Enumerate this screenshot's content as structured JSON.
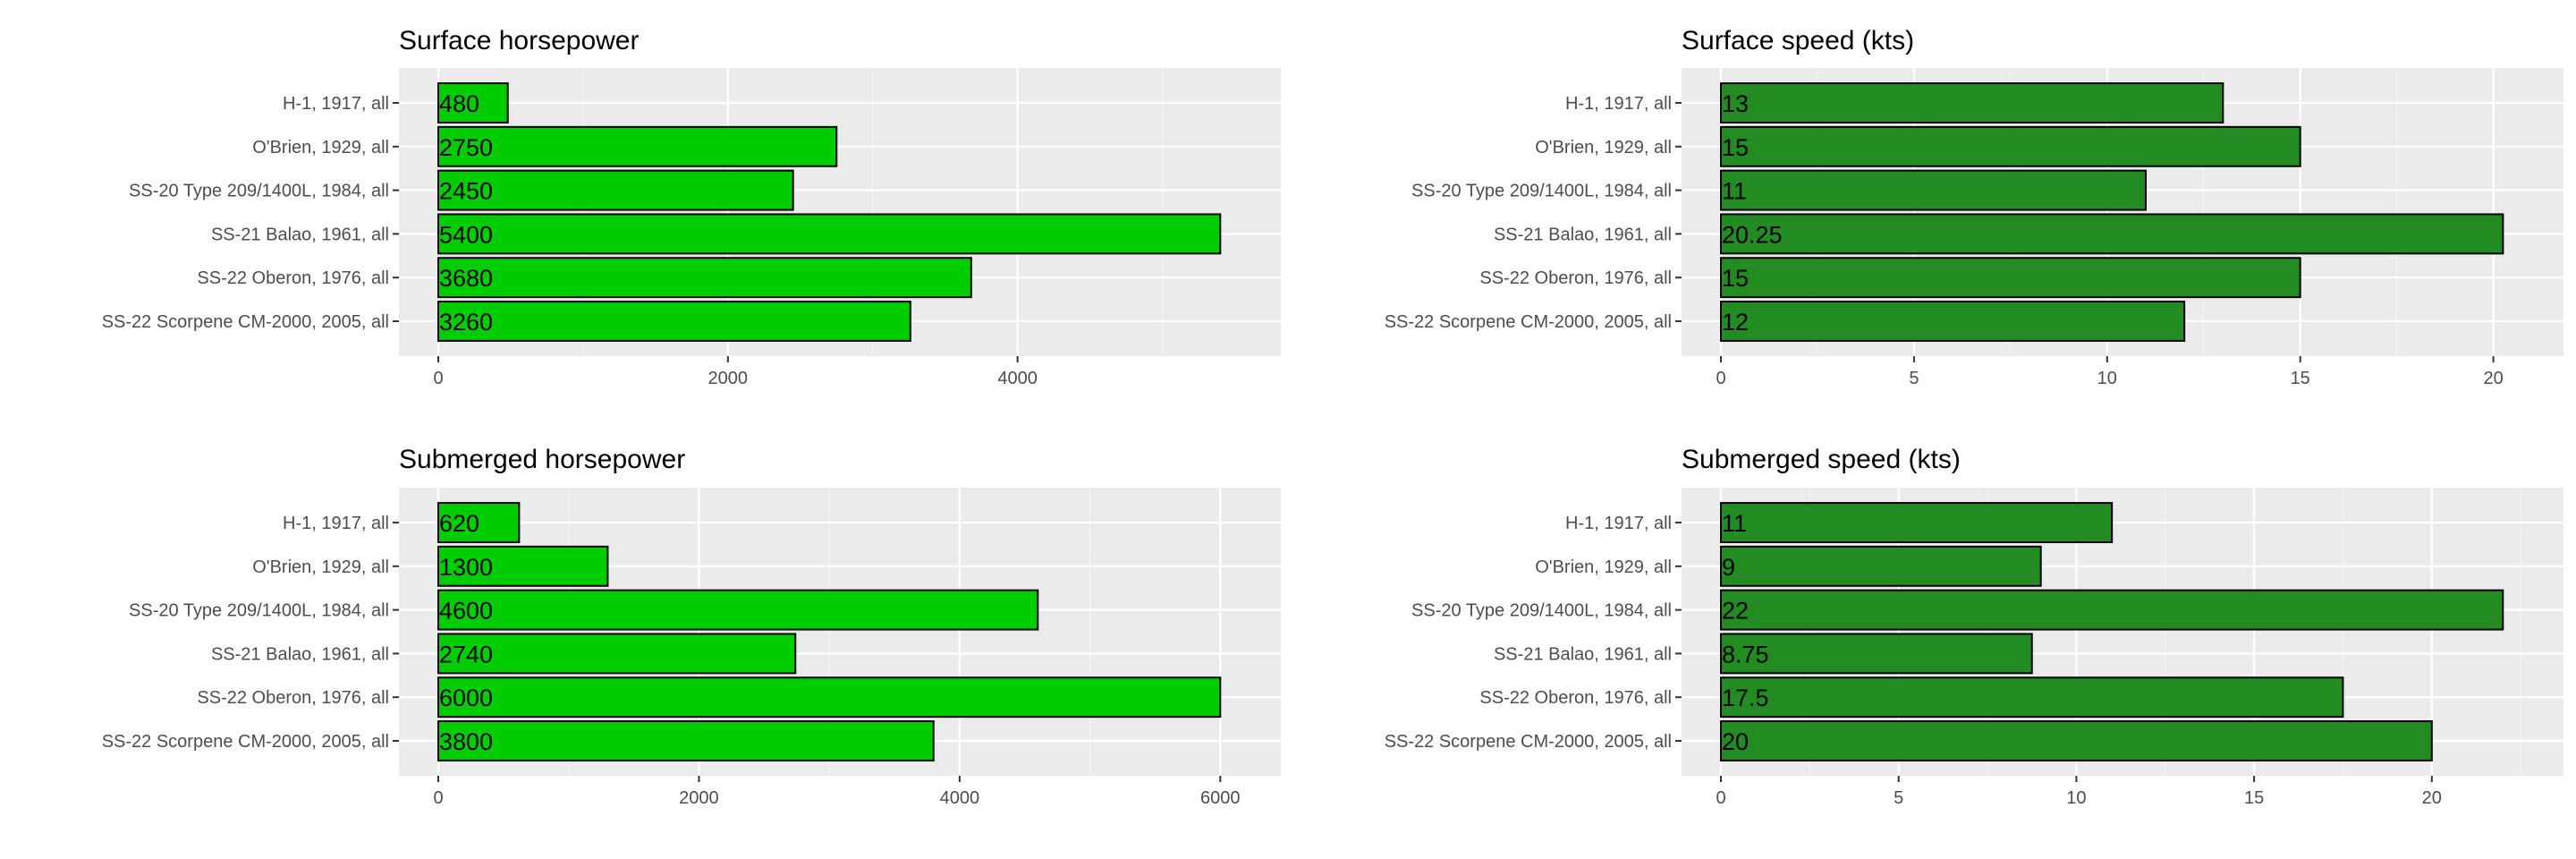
{
  "chart_data": [
    {
      "type": "bar",
      "orientation": "horizontal",
      "title": "Surface horsepower",
      "categories": [
        "H-1, 1917, all",
        "O'Brien, 1929, all",
        "SS-20 Type 209/1400L, 1984, all",
        "SS-21 Balao, 1961, all",
        "SS-22 Oberon, 1976, all",
        "SS-22 Scorpene CM-2000, 2005, all"
      ],
      "values": [
        480,
        2750,
        2450,
        5400,
        3680,
        3260
      ],
      "value_labels": [
        "480",
        "2750",
        "2450",
        "5400",
        "3680",
        "3260"
      ],
      "xlim": [
        0,
        5670
      ],
      "ticks": [
        0,
        2000,
        4000
      ],
      "tick_labels": [
        "0",
        "2000",
        "4000"
      ],
      "color": "#00cd00",
      "grid": true,
      "legend": "none"
    },
    {
      "type": "bar",
      "orientation": "horizontal",
      "title": "Surface speed (kts)",
      "categories": [
        "H-1, 1917, all",
        "O'Brien, 1929, all",
        "SS-20 Type 209/1400L, 1984, all",
        "SS-21 Balao, 1961, all",
        "SS-22 Oberon, 1976, all",
        "SS-22 Scorpene CM-2000, 2005, all"
      ],
      "values": [
        13,
        15,
        11,
        20.25,
        15,
        12
      ],
      "value_labels": [
        "13",
        "15",
        "11",
        "20.25",
        "15",
        "12"
      ],
      "xlim": [
        0,
        21.26
      ],
      "ticks": [
        0,
        5,
        10,
        15,
        20
      ],
      "tick_labels": [
        "0",
        "5",
        "10",
        "15",
        "20"
      ],
      "color": "#228b22",
      "grid": true,
      "legend": "none"
    },
    {
      "type": "bar",
      "orientation": "horizontal",
      "title": "Submerged horsepower",
      "categories": [
        "H-1, 1917, all",
        "O'Brien, 1929, all",
        "SS-20 Type 209/1400L, 1984, all",
        "SS-21 Balao, 1961, all",
        "SS-22 Oberon, 1976, all",
        "SS-22 Scorpene CM-2000, 2005, all"
      ],
      "values": [
        620,
        1300,
        4600,
        2740,
        6000,
        3800
      ],
      "value_labels": [
        "620",
        "1300",
        "4600",
        "2740",
        "6000",
        "3800"
      ],
      "xlim": [
        0,
        6300
      ],
      "ticks": [
        0,
        2000,
        4000,
        6000
      ],
      "tick_labels": [
        "0",
        "2000",
        "4000",
        "6000"
      ],
      "color": "#00cd00",
      "grid": true,
      "legend": "none"
    },
    {
      "type": "bar",
      "orientation": "horizontal",
      "title": "Submerged speed (kts)",
      "categories": [
        "H-1, 1917, all",
        "O'Brien, 1929, all",
        "SS-20 Type 209/1400L, 1984, all",
        "SS-21 Balao, 1961, all",
        "SS-22 Oberon, 1976, all",
        "SS-22 Scorpene CM-2000, 2005, all"
      ],
      "values": [
        11,
        9,
        22,
        8.75,
        17.5,
        20
      ],
      "value_labels": [
        "11",
        "9",
        "22",
        "8.75",
        "17.5",
        "20"
      ],
      "xlim": [
        0,
        23.1
      ],
      "ticks": [
        0,
        5,
        10,
        15,
        20
      ],
      "tick_labels": [
        "0",
        "5",
        "10",
        "15",
        "20"
      ],
      "color": "#228b22",
      "grid": true,
      "legend": "none"
    }
  ]
}
